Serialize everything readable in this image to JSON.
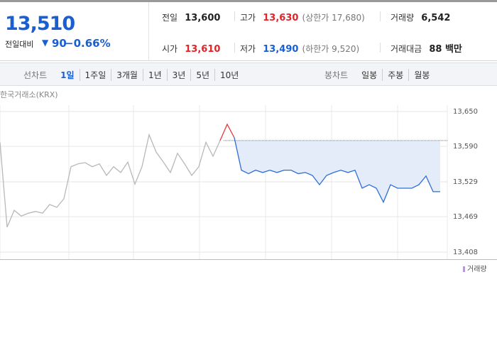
{
  "quote": {
    "price": "13,510",
    "change_label": "전일대비",
    "change_mark": "▼",
    "change": "90",
    "change_pct": "−0.66%"
  },
  "info": [
    {
      "label": "전일",
      "value": "13,600"
    },
    {
      "label": "고가",
      "value": "13,630",
      "extra": "(상한가 17,680)"
    },
    {
      "label": "거래량",
      "value": "6,542"
    },
    {
      "label": "시가",
      "value": "13,610"
    },
    {
      "label": "저가",
      "value": "13,490",
      "extra": "(하한가 9,520)"
    },
    {
      "label": "거래대금",
      "value": "88 백만"
    }
  ],
  "tabs": {
    "line_label": "선차트",
    "line_periods": [
      "1일",
      "1주일",
      "3개월",
      "1년",
      "3년",
      "5년",
      "10년"
    ],
    "candle_label": "봉차트",
    "candle_periods": [
      "일봉",
      "주봉",
      "월봉"
    ]
  },
  "chart_data": {
    "type": "line",
    "source": "한국거래소(KRX)",
    "ylim": [
      13408,
      13650
    ],
    "yticks": [
      {
        "value": 13650,
        "label": "13,650"
      },
      {
        "value": 13590,
        "label": "13,590"
      },
      {
        "value": 13529,
        "label": "13,529"
      },
      {
        "value": 13469,
        "label": "13,469"
      },
      {
        "value": 13408,
        "label": "13,408"
      }
    ],
    "reference_line": 13600,
    "series": [
      {
        "color": "#b8b8b8",
        "values": [
          13597,
          13451,
          13480,
          13470,
          13475,
          13478,
          13475,
          13490,
          13485,
          13500,
          13555,
          13560,
          13562,
          13555,
          13560,
          13540,
          13555,
          13545,
          13563,
          13525,
          13555,
          13610,
          13580,
          13563,
          13545,
          13578,
          13560,
          13540,
          13555,
          13597,
          13573,
          13600,
          null,
          null,
          null,
          null,
          null,
          null,
          null,
          null,
          null,
          null,
          null,
          null,
          null,
          null,
          null,
          null,
          null,
          null,
          null,
          null,
          null,
          null,
          null,
          null,
          null,
          null,
          null,
          null,
          null,
          null,
          null
        ]
      },
      {
        "color": "#e8383d",
        "values": [
          null,
          null,
          null,
          null,
          null,
          null,
          null,
          null,
          null,
          null,
          null,
          null,
          null,
          null,
          null,
          null,
          null,
          null,
          null,
          null,
          null,
          null,
          null,
          null,
          null,
          null,
          null,
          null,
          null,
          null,
          null,
          13600,
          13628,
          13605,
          null,
          null,
          null,
          null,
          null,
          null,
          null,
          null,
          null,
          null,
          null,
          null,
          null,
          null,
          null,
          null,
          null,
          null,
          null,
          null,
          null,
          null,
          null,
          null,
          null,
          null,
          null,
          null,
          null
        ]
      },
      {
        "color": "#2e6fd6",
        "values": [
          null,
          null,
          null,
          null,
          null,
          null,
          null,
          null,
          null,
          null,
          null,
          null,
          null,
          null,
          null,
          null,
          null,
          null,
          null,
          null,
          null,
          null,
          null,
          null,
          null,
          null,
          null,
          null,
          null,
          null,
          null,
          null,
          null,
          13605,
          13549,
          13543,
          13549,
          13545,
          13549,
          13545,
          13549,
          13549,
          13543,
          13545,
          13540,
          13524,
          13540,
          13545,
          13549,
          13545,
          13549,
          13518,
          13524,
          13518,
          13494,
          13524,
          13518,
          13518,
          13518,
          13524,
          13539,
          13512,
          13512
        ]
      }
    ],
    "legend": "거래량"
  }
}
